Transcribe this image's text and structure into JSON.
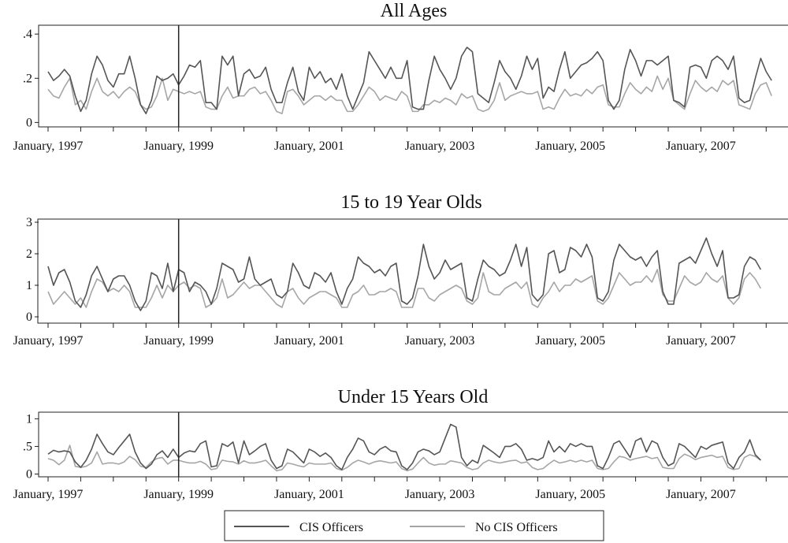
{
  "colors": {
    "cis": "#555555",
    "no_cis": "#a6a6a6",
    "frame": "#222222",
    "background": "#ffffff"
  },
  "legend": {
    "items": [
      {
        "label": "CIS Officers",
        "series": "cis"
      },
      {
        "label": "No CIS Officers",
        "series": "no_cis"
      }
    ],
    "placement": "bottom-center"
  },
  "chart_data": [
    {
      "type": "line",
      "title": "All Ages",
      "xlabel": "",
      "ylabel": "",
      "x_ticks": [
        "January, 1997",
        "January, 1999",
        "January, 2001",
        "January, 2003",
        "January, 2005",
        "January, 2007"
      ],
      "x_range": [
        "1997-01",
        "2008-04"
      ],
      "ylim": [
        -0.02,
        0.44
      ],
      "y_ticks": [
        {
          "value": 0,
          "label": "0"
        },
        {
          "value": 0.2,
          "label": ".2"
        },
        {
          "value": 0.4,
          "label": ".4"
        }
      ],
      "reference_line": "1999-01",
      "grid": false,
      "series": [
        {
          "name": "CIS Officers",
          "key": "cis",
          "x_start": "1997-01",
          "values": [
            0.23,
            0.19,
            0.21,
            0.24,
            0.21,
            0.12,
            0.05,
            0.1,
            0.22,
            0.3,
            0.26,
            0.19,
            0.16,
            0.22,
            0.22,
            0.3,
            0.2,
            0.08,
            0.04,
            0.1,
            0.21,
            0.19,
            0.2,
            0.22,
            0.17,
            0.21,
            0.26,
            0.25,
            0.28,
            0.09,
            0.09,
            0.06,
            0.3,
            0.26,
            0.3,
            0.12,
            0.22,
            0.24,
            0.2,
            0.21,
            0.25,
            0.15,
            0.09,
            0.09,
            0.18,
            0.25,
            0.14,
            0.1,
            0.25,
            0.2,
            0.23,
            0.18,
            0.2,
            0.15,
            0.22,
            0.12,
            0.06,
            0.12,
            0.18,
            0.32,
            0.28,
            0.24,
            0.2,
            0.25,
            0.2,
            0.2,
            0.28,
            0.07,
            0.06,
            0.06,
            0.19,
            0.3,
            0.24,
            0.2,
            0.15,
            0.2,
            0.3,
            0.34,
            0.32,
            0.13,
            0.11,
            0.09,
            0.18,
            0.28,
            0.23,
            0.2,
            0.15,
            0.21,
            0.3,
            0.24,
            0.29,
            0.11,
            0.16,
            0.14,
            0.24,
            0.32,
            0.2,
            0.23,
            0.26,
            0.27,
            0.29,
            0.32,
            0.28,
            0.1,
            0.06,
            0.1,
            0.24,
            0.33,
            0.28,
            0.21,
            0.28,
            0.28,
            0.26,
            0.28,
            0.3,
            0.1,
            0.09,
            0.07,
            0.25,
            0.26,
            0.25,
            0.2,
            0.28,
            0.3,
            0.28,
            0.24,
            0.3,
            0.11,
            0.09,
            0.1,
            0.2,
            0.29,
            0.23,
            0.19
          ]
        },
        {
          "name": "No CIS Officers",
          "key": "no_cis",
          "x_start": "1997-01",
          "values": [
            0.15,
            0.12,
            0.11,
            0.16,
            0.2,
            0.08,
            0.1,
            0.06,
            0.14,
            0.2,
            0.14,
            0.12,
            0.14,
            0.11,
            0.14,
            0.16,
            0.14,
            0.08,
            0.06,
            0.07,
            0.12,
            0.2,
            0.1,
            0.15,
            0.14,
            0.13,
            0.14,
            0.13,
            0.14,
            0.07,
            0.06,
            0.06,
            0.12,
            0.16,
            0.11,
            0.12,
            0.12,
            0.15,
            0.16,
            0.13,
            0.14,
            0.1,
            0.05,
            0.04,
            0.14,
            0.15,
            0.12,
            0.08,
            0.1,
            0.12,
            0.12,
            0.1,
            0.12,
            0.1,
            0.1,
            0.05,
            0.05,
            0.08,
            0.12,
            0.16,
            0.14,
            0.1,
            0.12,
            0.11,
            0.1,
            0.14,
            0.12,
            0.05,
            0.05,
            0.08,
            0.08,
            0.1,
            0.09,
            0.11,
            0.1,
            0.08,
            0.13,
            0.11,
            0.12,
            0.06,
            0.05,
            0.06,
            0.1,
            0.18,
            0.1,
            0.12,
            0.13,
            0.14,
            0.13,
            0.13,
            0.14,
            0.06,
            0.07,
            0.06,
            0.11,
            0.15,
            0.12,
            0.13,
            0.12,
            0.15,
            0.13,
            0.16,
            0.17,
            0.08,
            0.07,
            0.07,
            0.13,
            0.18,
            0.15,
            0.13,
            0.16,
            0.14,
            0.21,
            0.15,
            0.2,
            0.1,
            0.08,
            0.06,
            0.13,
            0.19,
            0.16,
            0.14,
            0.16,
            0.14,
            0.19,
            0.17,
            0.19,
            0.08,
            0.07,
            0.06,
            0.13,
            0.17,
            0.18,
            0.12
          ]
        }
      ]
    },
    {
      "type": "line",
      "title": "15 to 19 Year Olds",
      "xlabel": "",
      "ylabel": "",
      "x_ticks": [
        "January, 1997",
        "January, 1999",
        "January, 2001",
        "January, 2003",
        "January, 2005",
        "January, 2007"
      ],
      "x_range": [
        "1997-01",
        "2008-04"
      ],
      "ylim": [
        -0.2,
        3.1
      ],
      "y_ticks": [
        {
          "value": 0,
          "label": "0"
        },
        {
          "value": 1,
          "label": "1"
        },
        {
          "value": 2,
          "label": "2"
        },
        {
          "value": 3,
          "label": "3"
        }
      ],
      "reference_line": "1999-01",
      "grid": false,
      "series": [
        {
          "name": "CIS Officers",
          "key": "cis",
          "x_start": "1997-01",
          "values": [
            1.6,
            1.0,
            1.4,
            1.5,
            1.1,
            0.5,
            0.3,
            0.7,
            1.3,
            1.6,
            1.2,
            0.8,
            1.2,
            1.3,
            1.3,
            1.0,
            0.5,
            0.2,
            0.5,
            1.4,
            1.3,
            0.9,
            1.7,
            0.8,
            1.5,
            1.4,
            0.8,
            1.1,
            1.0,
            0.8,
            0.4,
            0.9,
            1.7,
            1.6,
            1.5,
            1.1,
            1.2,
            1.9,
            1.2,
            1.0,
            1.1,
            1.2,
            0.7,
            0.6,
            0.8,
            1.7,
            1.4,
            1.0,
            0.9,
            1.4,
            1.3,
            1.1,
            1.4,
            0.8,
            0.4,
            0.9,
            1.2,
            1.9,
            1.7,
            1.6,
            1.4,
            1.5,
            1.3,
            1.6,
            1.7,
            0.5,
            0.4,
            0.6,
            1.3,
            2.3,
            1.6,
            1.2,
            1.4,
            1.8,
            1.5,
            1.6,
            1.7,
            0.6,
            0.5,
            1.2,
            1.8,
            1.6,
            1.5,
            1.3,
            1.4,
            1.8,
            2.3,
            1.6,
            2.2,
            0.7,
            0.5,
            0.7,
            2.0,
            2.1,
            1.4,
            1.5,
            2.2,
            2.1,
            1.9,
            2.3,
            1.9,
            0.6,
            0.5,
            0.8,
            1.8,
            2.3,
            2.1,
            1.9,
            1.8,
            1.9,
            1.6,
            1.9,
            2.1,
            0.8,
            0.4,
            0.4,
            1.7,
            1.8,
            1.9,
            1.7,
            2.1,
            2.5,
            2.0,
            1.6,
            2.1,
            0.6,
            0.6,
            0.7,
            1.6,
            1.9,
            1.8,
            1.5
          ]
        },
        {
          "name": "No CIS Officers",
          "key": "no_cis",
          "x_start": "1997-01",
          "values": [
            0.8,
            0.4,
            0.6,
            0.8,
            0.6,
            0.4,
            0.6,
            0.3,
            0.8,
            1.2,
            1.1,
            0.8,
            0.9,
            0.8,
            1.0,
            0.8,
            0.3,
            0.3,
            0.3,
            0.6,
            1.0,
            0.6,
            1.0,
            0.8,
            1.0,
            1.1,
            0.9,
            1.0,
            0.9,
            0.3,
            0.4,
            0.6,
            1.2,
            0.6,
            0.7,
            0.9,
            1.1,
            0.9,
            1.0,
            1.0,
            0.8,
            0.6,
            0.4,
            0.3,
            0.8,
            0.9,
            0.6,
            0.4,
            0.6,
            0.7,
            0.8,
            0.8,
            0.7,
            0.6,
            0.3,
            0.3,
            0.7,
            0.8,
            1.0,
            0.7,
            0.7,
            0.8,
            0.8,
            0.9,
            0.8,
            0.3,
            0.3,
            0.3,
            0.9,
            0.9,
            0.6,
            0.5,
            0.7,
            0.8,
            0.9,
            1.0,
            0.9,
            0.5,
            0.4,
            0.6,
            1.4,
            0.8,
            0.7,
            0.7,
            0.9,
            1.0,
            1.1,
            0.9,
            1.1,
            0.4,
            0.3,
            0.6,
            0.8,
            1.1,
            0.8,
            1.0,
            1.0,
            1.2,
            1.1,
            1.2,
            1.3,
            0.5,
            0.4,
            0.6,
            1.0,
            1.4,
            1.2,
            1.0,
            1.1,
            1.1,
            1.3,
            1.1,
            1.5,
            0.7,
            0.5,
            0.5,
            0.9,
            1.3,
            1.1,
            1.0,
            1.1,
            1.4,
            1.2,
            1.1,
            1.3,
            0.6,
            0.4,
            0.6,
            1.2,
            1.4,
            1.2,
            0.9
          ]
        }
      ]
    },
    {
      "type": "line",
      "title": "Under 15 Years Old",
      "xlabel": "",
      "ylabel": "",
      "x_ticks": [
        "January, 1997",
        "January, 1999",
        "January, 2001",
        "January, 2003",
        "January, 2005",
        "January, 2007"
      ],
      "x_range": [
        "1997-01",
        "2008-04"
      ],
      "ylim": [
        -0.05,
        1.12
      ],
      "y_ticks": [
        {
          "value": 0,
          "label": "0"
        },
        {
          "value": 0.5,
          "label": ".5"
        },
        {
          "value": 1,
          "label": "1"
        }
      ],
      "reference_line": "1999-01",
      "grid": false,
      "series": [
        {
          "name": "CIS Officers",
          "key": "cis",
          "x_start": "1997-01",
          "values": [
            0.36,
            0.43,
            0.4,
            0.42,
            0.4,
            0.22,
            0.12,
            0.25,
            0.45,
            0.72,
            0.55,
            0.4,
            0.35,
            0.48,
            0.6,
            0.72,
            0.4,
            0.2,
            0.1,
            0.18,
            0.35,
            0.42,
            0.3,
            0.45,
            0.3,
            0.38,
            0.42,
            0.4,
            0.55,
            0.6,
            0.13,
            0.15,
            0.55,
            0.5,
            0.58,
            0.2,
            0.6,
            0.35,
            0.42,
            0.5,
            0.55,
            0.25,
            0.1,
            0.15,
            0.45,
            0.4,
            0.3,
            0.2,
            0.45,
            0.4,
            0.32,
            0.38,
            0.3,
            0.15,
            0.08,
            0.3,
            0.45,
            0.65,
            0.6,
            0.4,
            0.35,
            0.45,
            0.5,
            0.42,
            0.4,
            0.15,
            0.08,
            0.2,
            0.4,
            0.45,
            0.42,
            0.35,
            0.4,
            0.65,
            0.9,
            0.85,
            0.3,
            0.15,
            0.25,
            0.2,
            0.52,
            0.45,
            0.38,
            0.3,
            0.5,
            0.5,
            0.55,
            0.45,
            0.25,
            0.28,
            0.25,
            0.3,
            0.6,
            0.4,
            0.5,
            0.4,
            0.55,
            0.5,
            0.55,
            0.5,
            0.5,
            0.15,
            0.1,
            0.3,
            0.55,
            0.6,
            0.45,
            0.3,
            0.6,
            0.65,
            0.4,
            0.6,
            0.55,
            0.3,
            0.15,
            0.2,
            0.55,
            0.5,
            0.4,
            0.3,
            0.5,
            0.45,
            0.52,
            0.55,
            0.58,
            0.2,
            0.1,
            0.3,
            0.4,
            0.62,
            0.35,
            0.25
          ]
        },
        {
          "name": "No CIS Officers",
          "key": "no_cis",
          "x_start": "1997-01",
          "values": [
            0.28,
            0.25,
            0.17,
            0.25,
            0.52,
            0.14,
            0.12,
            0.14,
            0.2,
            0.4,
            0.18,
            0.2,
            0.2,
            0.18,
            0.22,
            0.32,
            0.26,
            0.14,
            0.12,
            0.22,
            0.28,
            0.3,
            0.18,
            0.25,
            0.25,
            0.22,
            0.2,
            0.2,
            0.23,
            0.18,
            0.08,
            0.1,
            0.25,
            0.23,
            0.22,
            0.18,
            0.24,
            0.2,
            0.2,
            0.22,
            0.25,
            0.15,
            0.06,
            0.08,
            0.2,
            0.18,
            0.15,
            0.13,
            0.2,
            0.18,
            0.18,
            0.18,
            0.2,
            0.1,
            0.07,
            0.12,
            0.2,
            0.25,
            0.22,
            0.18,
            0.22,
            0.24,
            0.22,
            0.2,
            0.22,
            0.1,
            0.06,
            0.09,
            0.2,
            0.3,
            0.2,
            0.16,
            0.18,
            0.18,
            0.24,
            0.22,
            0.2,
            0.12,
            0.08,
            0.1,
            0.2,
            0.25,
            0.22,
            0.2,
            0.22,
            0.24,
            0.25,
            0.2,
            0.22,
            0.12,
            0.08,
            0.1,
            0.18,
            0.25,
            0.2,
            0.22,
            0.25,
            0.22,
            0.25,
            0.22,
            0.25,
            0.1,
            0.08,
            0.1,
            0.22,
            0.32,
            0.3,
            0.25,
            0.28,
            0.3,
            0.32,
            0.28,
            0.3,
            0.12,
            0.1,
            0.1,
            0.28,
            0.36,
            0.32,
            0.26,
            0.3,
            0.32,
            0.34,
            0.3,
            0.32,
            0.12,
            0.08,
            0.1,
            0.3,
            0.35,
            0.32,
            0.25
          ]
        }
      ]
    }
  ]
}
